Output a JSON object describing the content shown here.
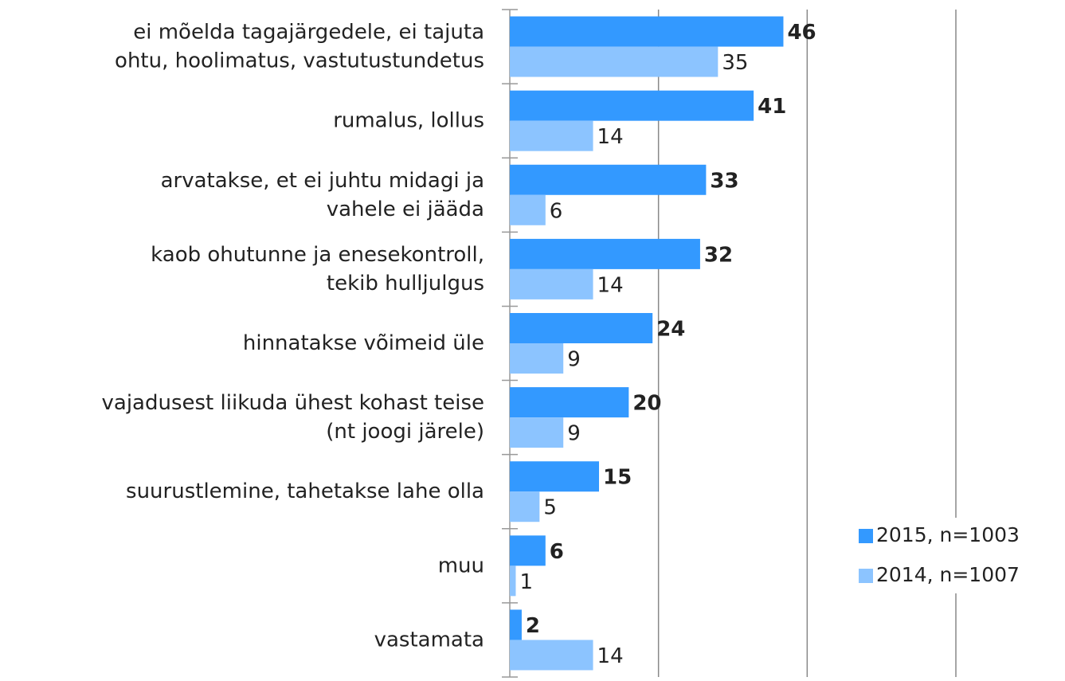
{
  "chart_data": {
    "type": "barh",
    "categories": [
      "ei mõelda tagajärgedele, ei tajuta\nohtu, hoolimatus, vastutustundetus",
      "rumalus, lollus",
      "arvatakse, et ei juhtu midagi ja\nvahele ei jääda",
      "kaob ohutunne ja enesekontroll,\ntekib hulljulgus",
      "hinnatakse võimeid üle",
      "vajadusest liikuda ühest kohast teise\n(nt joogi järele)",
      "suurustlemine, tahetakse lahe olla",
      "muu",
      "vastamata"
    ],
    "series": [
      {
        "name": "2015, n=1003",
        "color": "#3399ff",
        "values": [
          46,
          41,
          33,
          32,
          24,
          20,
          15,
          6,
          2
        ]
      },
      {
        "name": "2014, n=1007",
        "color": "#8cc4ff",
        "values": [
          35,
          14,
          6,
          14,
          9,
          9,
          5,
          1,
          14
        ]
      }
    ],
    "xlim": [
      0,
      75
    ],
    "xticks": [
      0,
      25,
      50,
      75
    ],
    "grid": true,
    "legend": "lower right"
  }
}
